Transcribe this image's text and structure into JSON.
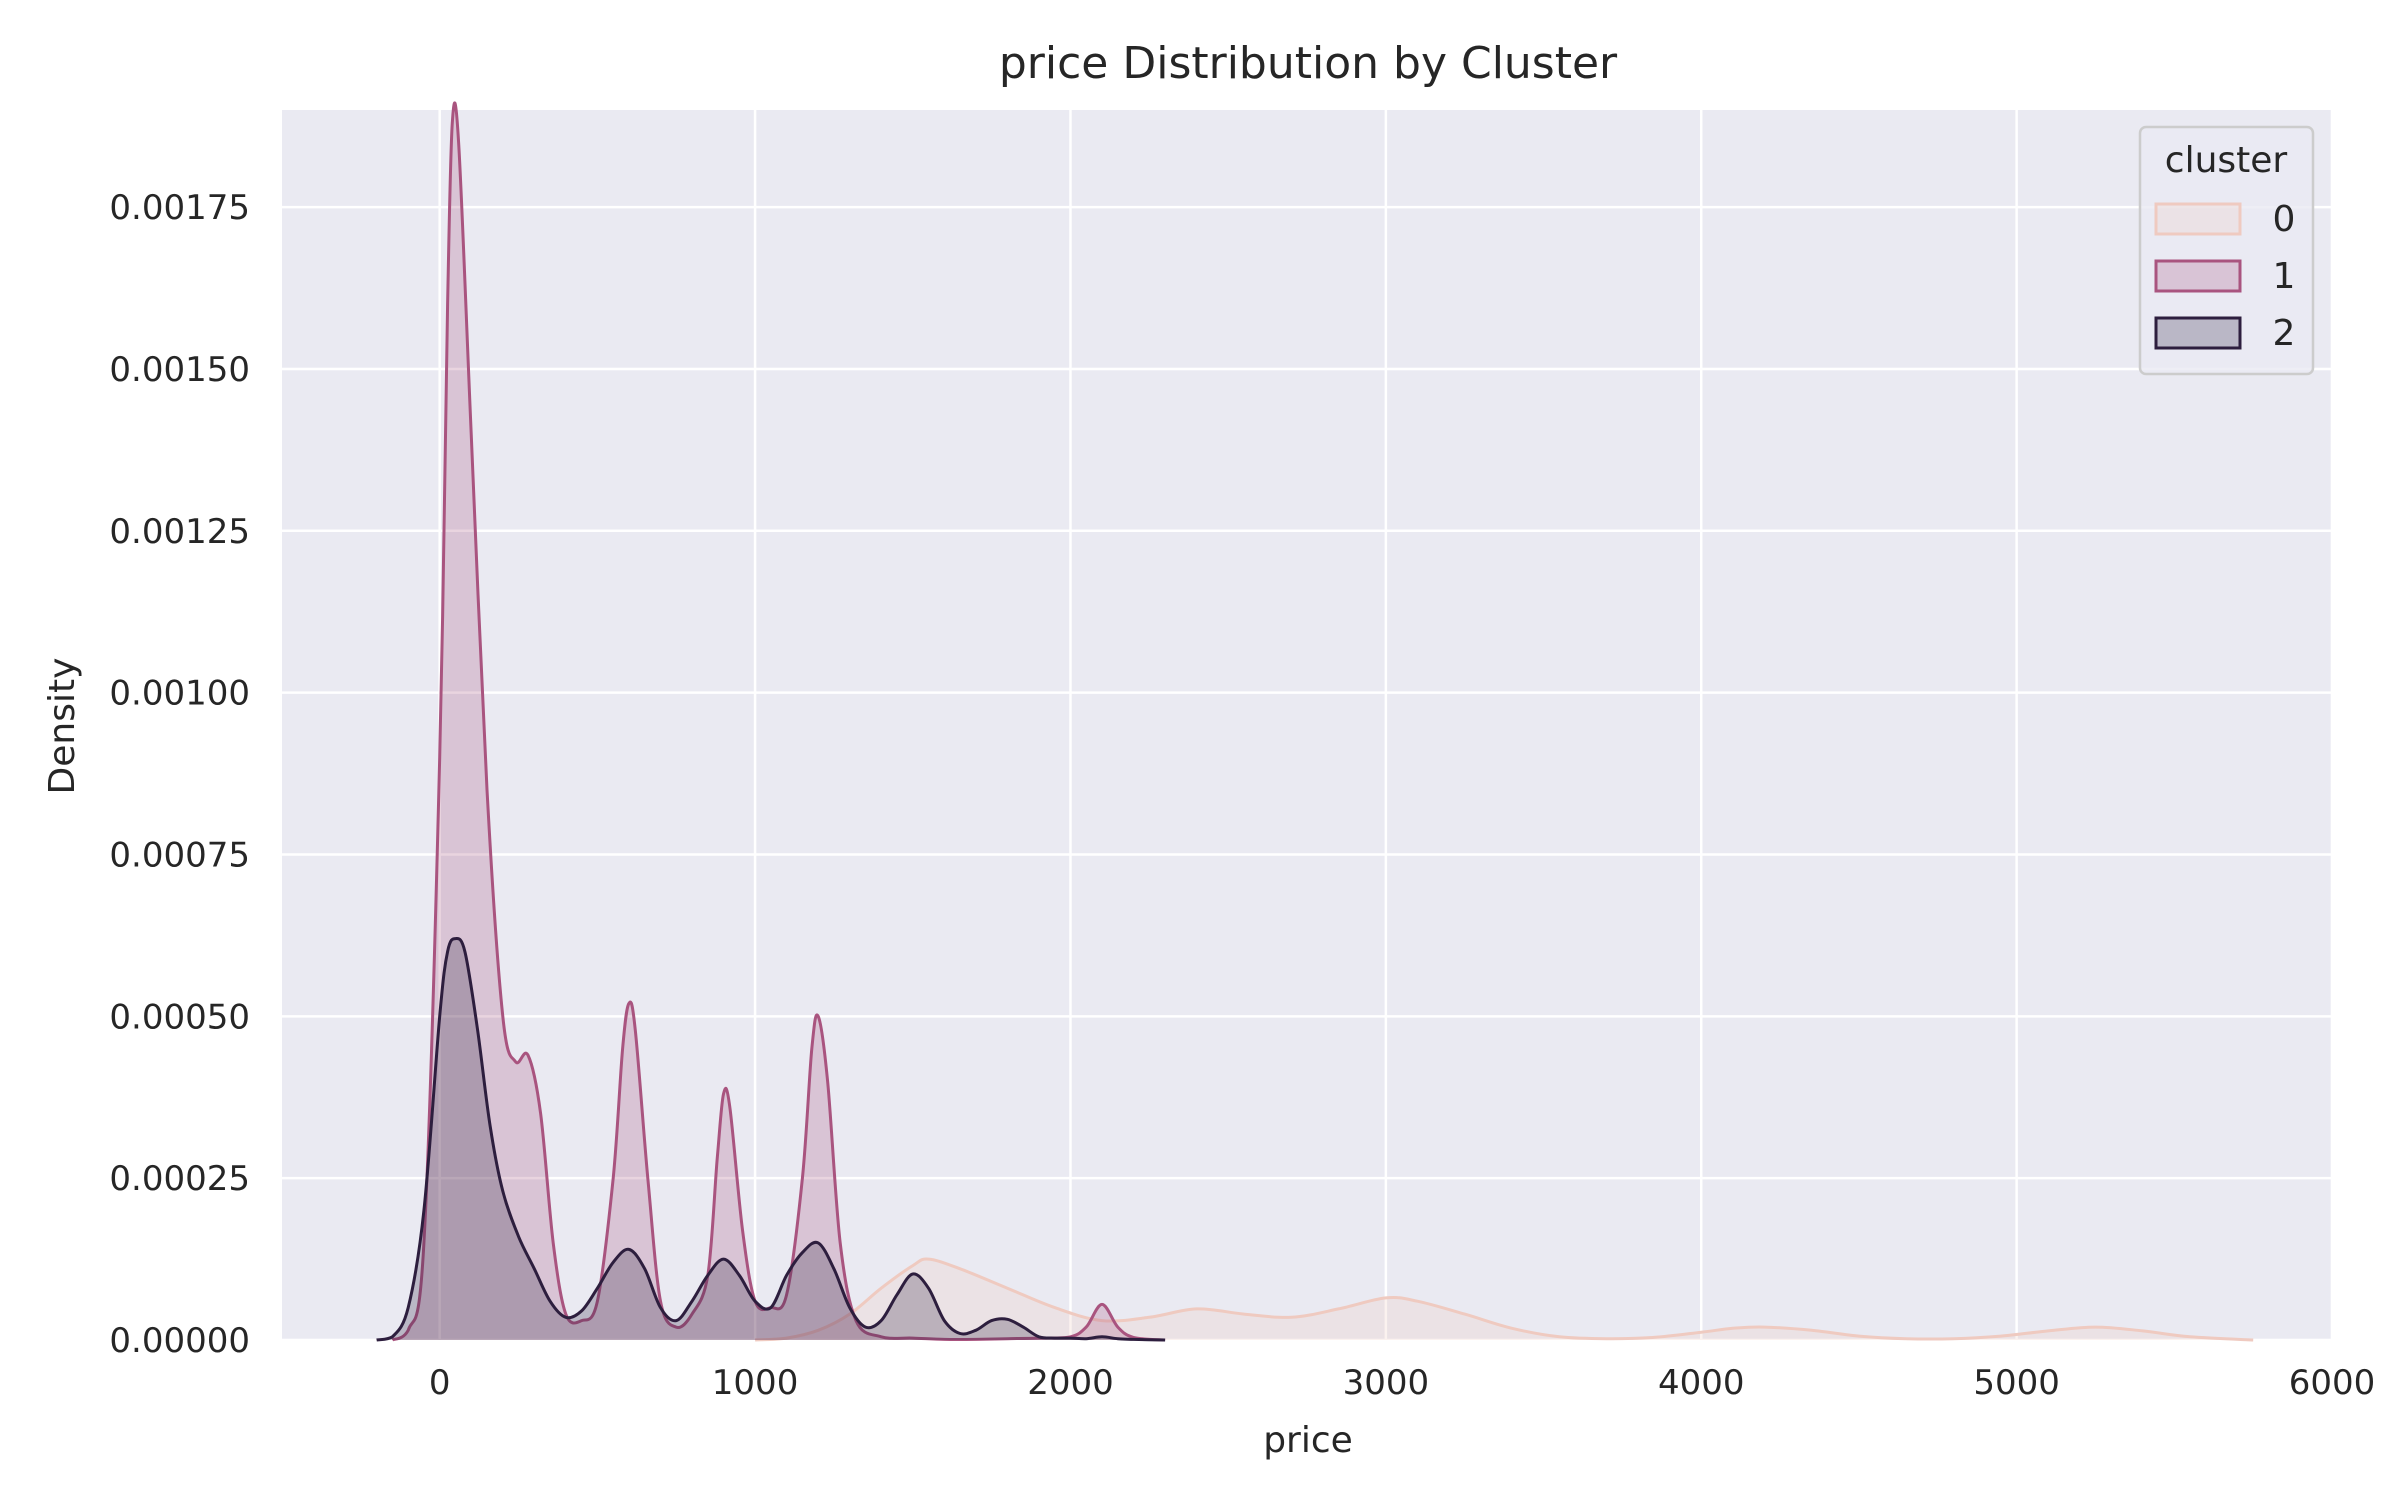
{
  "chart_data": {
    "type": "area",
    "title": "price Distribution by Cluster",
    "xlabel": "price",
    "ylabel": "Density",
    "xlim": [
      -500,
      6000
    ],
    "ylim": [
      0,
      0.0019
    ],
    "xticks": [
      0,
      1000,
      2000,
      3000,
      4000,
      5000,
      6000
    ],
    "xtick_labels": [
      "0",
      "1000",
      "2000",
      "3000",
      "4000",
      "5000",
      "6000"
    ],
    "yticks": [
      0,
      0.00025,
      0.0005,
      0.00075,
      0.001,
      0.00125,
      0.0015,
      0.00175
    ],
    "ytick_labels": [
      "0.00000",
      "0.00025",
      "0.00050",
      "0.00075",
      "0.00100",
      "0.00125",
      "0.00150",
      "0.00175"
    ],
    "grid": true,
    "legend": {
      "title": "cluster",
      "placement": "top-right"
    },
    "series": [
      {
        "name": "0",
        "color": "#efcac0",
        "x": [
          1000,
          1100,
          1200,
          1300,
          1400,
          1500,
          1550,
          1650,
          1800,
          1950,
          2100,
          2250,
          2400,
          2550,
          2700,
          2850,
          3000,
          3100,
          3250,
          3400,
          3550,
          3700,
          3850,
          4000,
          4100,
          4200,
          4350,
          4500,
          4650,
          4800,
          4950,
          5100,
          5250,
          5400,
          5550,
          5750
        ],
        "y": [
          0,
          3e-06,
          1.5e-05,
          4e-05,
          8e-05,
          0.000115,
          0.000125,
          0.00011,
          8e-05,
          5e-05,
          3e-05,
          3.5e-05,
          4.8e-05,
          4e-05,
          3.5e-05,
          4.8e-05,
          6.5e-05,
          6e-05,
          4e-05,
          1.8e-05,
          5e-06,
          2e-06,
          4e-06,
          1.2e-05,
          1.8e-05,
          2e-05,
          1.5e-05,
          6e-06,
          2e-06,
          2e-06,
          6e-06,
          1.4e-05,
          2e-05,
          1.4e-05,
          5e-06,
          0
        ]
      },
      {
        "name": "1",
        "color": "#a9547f",
        "x": [
          -150,
          -100,
          -50,
          0,
          25,
          40,
          60,
          100,
          150,
          200,
          240,
          280,
          320,
          360,
          400,
          450,
          500,
          550,
          580,
          600,
          620,
          660,
          700,
          750,
          800,
          850,
          880,
          900,
          920,
          960,
          1000,
          1050,
          1100,
          1150,
          1180,
          1200,
          1230,
          1270,
          1320,
          1400,
          1500,
          1600,
          1700,
          1800,
          1900,
          2000,
          2050,
          2100,
          2150,
          2200,
          2300
        ],
        "y": [
          0,
          1.5e-05,
          0.00015,
          0.0009,
          0.0016,
          0.00188,
          0.00185,
          0.0014,
          0.00085,
          0.0005,
          0.00043,
          0.00044,
          0.00035,
          0.00015,
          4e-05,
          3e-05,
          6e-05,
          0.00025,
          0.00045,
          0.00052,
          0.00048,
          0.00025,
          6e-05,
          2e-05,
          4e-05,
          0.0001,
          0.00028,
          0.00038,
          0.00036,
          0.00017,
          6e-05,
          5e-05,
          7e-05,
          0.00025,
          0.00045,
          0.0005,
          0.0004,
          0.00015,
          3e-05,
          5e-06,
          3e-06,
          1e-06,
          1e-06,
          2e-06,
          3e-06,
          5e-06,
          2e-05,
          5.5e-05,
          2e-05,
          4e-06,
          0
        ]
      },
      {
        "name": "2",
        "color": "#2d1e3e",
        "x": [
          -200,
          -150,
          -100,
          -50,
          0,
          25,
          50,
          80,
          120,
          160,
          200,
          250,
          300,
          350,
          400,
          450,
          500,
          550,
          600,
          650,
          700,
          750,
          800,
          850,
          900,
          950,
          1000,
          1050,
          1100,
          1150,
          1200,
          1250,
          1300,
          1350,
          1400,
          1450,
          1500,
          1550,
          1600,
          1650,
          1700,
          1750,
          1800,
          1850,
          1900,
          1950,
          2000,
          2050,
          2100,
          2150,
          2200,
          2300
        ],
        "y": [
          0,
          5e-06,
          5e-05,
          0.0002,
          0.0005,
          0.0006,
          0.00062,
          0.0006,
          0.00048,
          0.00033,
          0.00023,
          0.00016,
          0.00011,
          6e-05,
          3.5e-05,
          4.5e-05,
          8e-05,
          0.00012,
          0.00014,
          0.00011,
          5e-05,
          3e-05,
          6e-05,
          0.0001,
          0.000125,
          0.0001,
          6e-05,
          5e-05,
          0.0001,
          0.000135,
          0.00015,
          0.00011,
          5e-05,
          2e-05,
          3e-05,
          7e-05,
          0.000102,
          8e-05,
          3e-05,
          1e-05,
          1.5e-05,
          3e-05,
          3.2e-05,
          2e-05,
          5e-06,
          3e-06,
          3e-06,
          2e-06,
          5e-06,
          2e-06,
          1e-06,
          0
        ]
      }
    ]
  }
}
